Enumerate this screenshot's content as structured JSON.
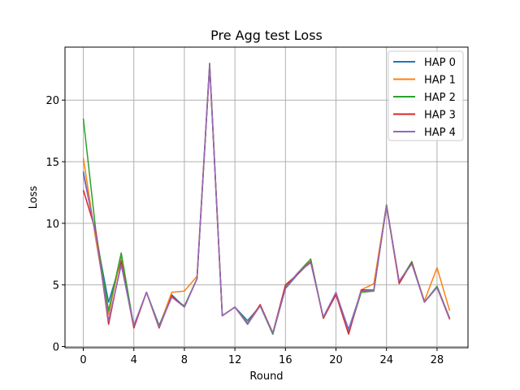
{
  "chart_data": {
    "type": "line",
    "title": "Pre Agg test Loss",
    "xlabel": "Round",
    "ylabel": "Loss",
    "xlim": [
      -1.45,
      30.45
    ],
    "ylim": [
      -0.1,
      24.3
    ],
    "xticks": [
      0,
      4,
      8,
      12,
      16,
      20,
      24,
      28
    ],
    "yticks": [
      0,
      5,
      10,
      15,
      20
    ],
    "grid": true,
    "legend_position": "top-right",
    "x": [
      0,
      1,
      2,
      3,
      4,
      5,
      6,
      7,
      8,
      9,
      10,
      11,
      12,
      13,
      14,
      15,
      16,
      17,
      18,
      19,
      20,
      21,
      22,
      23,
      24,
      25,
      26,
      27,
      28,
      29
    ],
    "series": [
      {
        "name": "HAP 0",
        "color": "#1f77b4",
        "values": [
          14.2,
          9.0,
          3.6,
          7.0,
          1.7,
          4.4,
          1.7,
          4.2,
          3.2,
          5.5,
          22.8,
          2.5,
          3.2,
          2.1,
          3.3,
          1.0,
          4.7,
          5.9,
          6.9,
          2.3,
          4.3,
          1.4,
          4.5,
          4.6,
          11.4,
          5.2,
          6.8,
          3.6,
          4.8,
          2.3
        ]
      },
      {
        "name": "HAP 1",
        "color": "#ff7f0e",
        "values": [
          15.3,
          8.6,
          2.6,
          7.4,
          1.6,
          4.4,
          1.6,
          4.4,
          4.5,
          5.7,
          22.9,
          2.5,
          3.2,
          1.9,
          3.4,
          1.1,
          4.8,
          6.0,
          6.9,
          2.3,
          4.3,
          1.1,
          4.6,
          5.1,
          11.5,
          5.3,
          6.8,
          3.7,
          6.4,
          2.9
        ]
      },
      {
        "name": "HAP 2",
        "color": "#2ca02c",
        "values": [
          18.5,
          9.3,
          2.9,
          7.6,
          1.6,
          4.4,
          1.7,
          4.0,
          3.3,
          5.5,
          23.0,
          2.5,
          3.2,
          1.9,
          3.3,
          1.0,
          4.8,
          6.0,
          7.1,
          2.3,
          4.3,
          1.1,
          4.4,
          4.5,
          11.5,
          5.2,
          6.9,
          3.6,
          4.9,
          2.3
        ]
      },
      {
        "name": "HAP 3",
        "color": "#d62728",
        "values": [
          12.7,
          9.3,
          1.8,
          6.8,
          1.5,
          4.4,
          1.5,
          4.1,
          3.2,
          5.5,
          22.8,
          2.5,
          3.2,
          1.8,
          3.4,
          1.1,
          5.0,
          5.9,
          6.9,
          2.3,
          4.2,
          1.0,
          4.6,
          4.6,
          11.4,
          5.1,
          6.8,
          3.6,
          4.8,
          2.2
        ]
      },
      {
        "name": "HAP 4",
        "color": "#9467bd",
        "values": [
          14.0,
          9.0,
          2.1,
          6.6,
          1.7,
          4.4,
          1.6,
          4.0,
          3.2,
          5.5,
          22.9,
          2.5,
          3.2,
          1.8,
          3.3,
          1.1,
          4.7,
          6.0,
          6.8,
          2.4,
          4.4,
          1.3,
          4.5,
          4.6,
          11.4,
          5.3,
          6.7,
          3.6,
          4.8,
          2.3
        ]
      }
    ]
  }
}
